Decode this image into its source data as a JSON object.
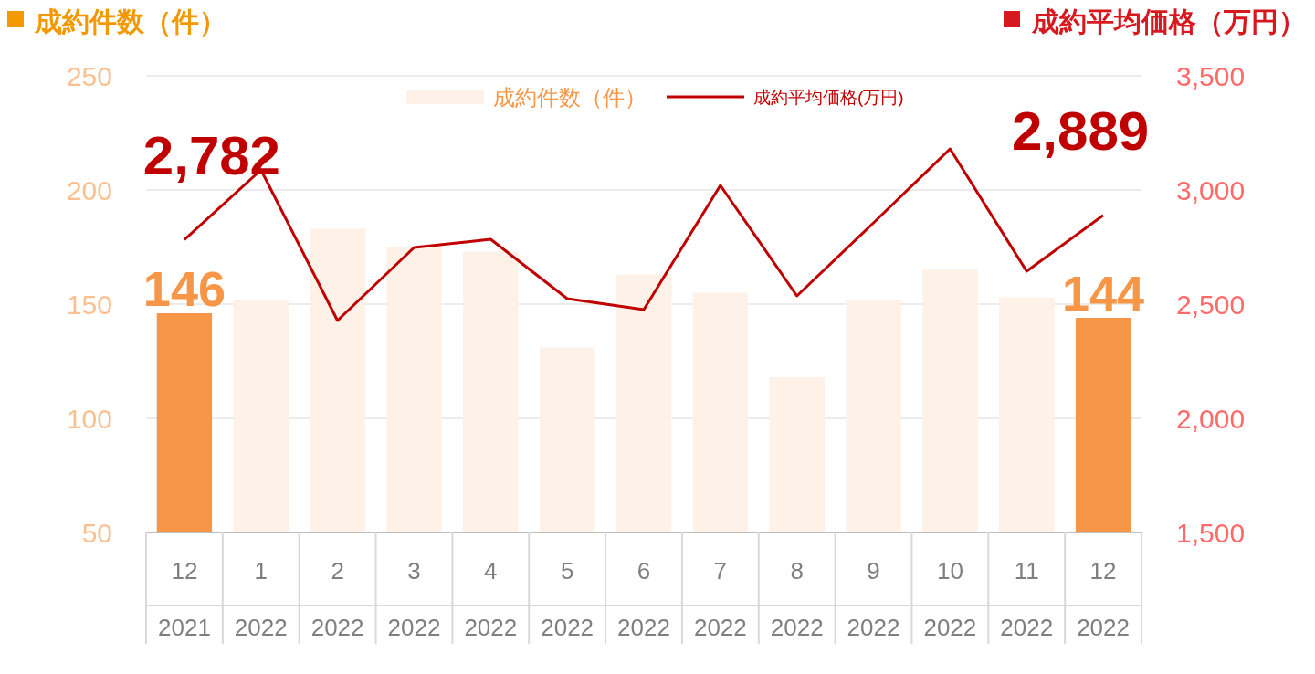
{
  "chart_data": {
    "type": "bar",
    "categories": [
      "12\n2021",
      "1\n2022",
      "2\n2022",
      "3\n2022",
      "4\n2022",
      "5\n2022",
      "6\n2022",
      "7\n2022",
      "8\n2022",
      "9\n2022",
      "10\n2022",
      "11\n2022",
      "12\n2022"
    ],
    "ylabel": "成約件数（件）",
    "y2label": "成約平均価格（万円）",
    "ylim": [
      50,
      250
    ],
    "yticks": [
      50,
      100,
      150,
      200,
      250
    ],
    "y2lim": [
      1500,
      3500
    ],
    "y2ticks": [
      {
        "value": 1500,
        "label": "1,500"
      },
      {
        "value": 2000,
        "label": "2,000"
      },
      {
        "value": 2500,
        "label": "2,500"
      },
      {
        "value": 3000,
        "label": "3,000"
      },
      {
        "value": 3500,
        "label": "3,500"
      }
    ],
    "grid": "y",
    "legend": "top",
    "series": [
      {
        "name": "成約件数（件）",
        "color": "#fdf1e8",
        "colors": [
          "#f79646",
          "#fdf1e8",
          "#fdf1e8",
          "#fdf1e8",
          "#fdf1e8",
          "#fdf1e8",
          "#fdf1e8",
          "#fdf1e8",
          "#fdf1e8",
          "#fdf1e8",
          "#fdf1e8",
          "#fdf1e8",
          "#f79646"
        ],
        "values": [
          146,
          152,
          183,
          175,
          173,
          131,
          163,
          155,
          118,
          152,
          165,
          153,
          144
        ],
        "value_labels": [
          "146",
          null,
          null,
          null,
          null,
          null,
          null,
          null,
          null,
          null,
          null,
          null,
          "144"
        ]
      },
      {
        "name": "成約平均価格(万円)",
        "type": "line",
        "axis": "y2",
        "color": "#c00000",
        "values": [
          2782,
          3088,
          2428,
          2748,
          2784,
          2524,
          2476,
          3020,
          2536,
          2856,
          3180,
          2644,
          2889
        ],
        "value_labels": [
          "2,782",
          null,
          null,
          null,
          null,
          null,
          null,
          null,
          null,
          null,
          null,
          null,
          "2,889"
        ]
      }
    ]
  }
}
